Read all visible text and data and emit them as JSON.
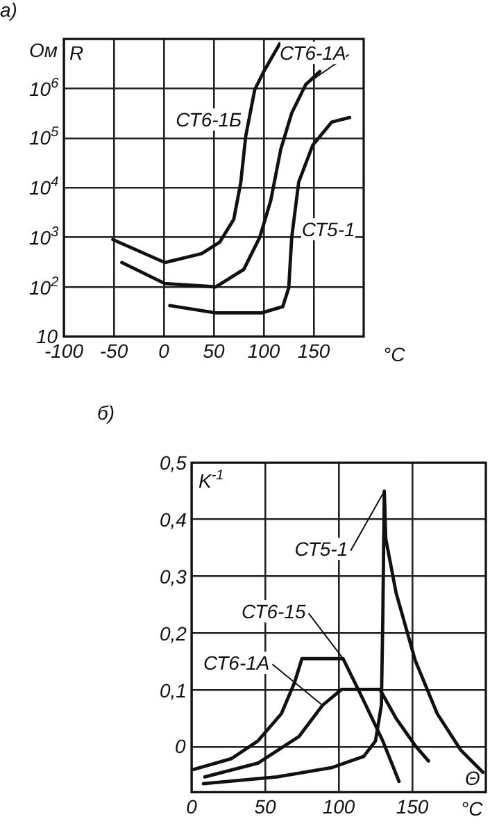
{
  "chart_data": [
    {
      "type": "line",
      "title": "а)",
      "xlabel": "°C",
      "ylabel": "Ом",
      "annotations": [
        "R"
      ],
      "log": "y",
      "grid": true,
      "legend": false,
      "marker": "none",
      "line_style": "solid",
      "xlim": [
        -100,
        200
      ],
      "xticks": [
        -100,
        -50,
        0,
        50,
        100,
        150
      ],
      "ylim": [
        10,
        10000000
      ],
      "yticks": [
        {
          "value": 10,
          "label": "10"
        },
        {
          "value": 100,
          "label": "10$^{2}$"
        },
        {
          "value": 1000,
          "label": "10$^{3}$"
        },
        {
          "value": 10000,
          "label": "10$^{4}$"
        },
        {
          "value": 100000,
          "label": "10$^{5}$"
        },
        {
          "value": 1000000,
          "label": "10$^{6}$"
        },
        {
          "value": 10000000,
          "label": null
        }
      ],
      "series": [
        {
          "name": "СТ6-1Б",
          "color": "#111111",
          "x": [
            -51,
            1,
            38,
            56,
            70,
            77,
            82,
            91,
            100,
            116
          ],
          "values": [
            900,
            310,
            470,
            800,
            2300,
            12600,
            110000,
            950000,
            2200000,
            8000000
          ]
        },
        {
          "name": "СТ6-1А",
          "color": "#111111",
          "x": [
            -42,
            1,
            52,
            80,
            96,
            107,
            117,
            128,
            142,
            156
          ],
          "values": [
            310,
            117,
            100,
            225,
            1000,
            5500,
            59000,
            320000,
            1200000,
            2200000
          ]
        },
        {
          "name": "СТ5-1",
          "color": "#111111",
          "x": [
            6,
            52,
            98,
            119,
            125,
            128,
            135,
            149,
            168,
            186
          ],
          "values": [
            42,
            30,
            30,
            40,
            95,
            1000,
            13000,
            72000,
            210000,
            260000
          ]
        }
      ]
    },
    {
      "type": "line",
      "title": "б)",
      "xlabel": "°C",
      "ylabel": "K$^{-1}$",
      "annotations": [
        "Θ"
      ],
      "grid": true,
      "legend": false,
      "marker": "none",
      "line_style": "solid",
      "xlim": [
        0,
        200
      ],
      "xticks": [
        0,
        50,
        100,
        150
      ],
      "ylim": [
        -0.08,
        0.5
      ],
      "yticks": [
        {
          "value": 0,
          "label": "0"
        },
        {
          "value": 0.1,
          "label": "0,1"
        },
        {
          "value": 0.2,
          "label": "0,2"
        },
        {
          "value": 0.3,
          "label": "0,3"
        },
        {
          "value": 0.4,
          "label": "0,4"
        },
        {
          "value": 0.5,
          "label": "0,5"
        }
      ],
      "series": [
        {
          "name": "СТ5-1",
          "color": "#111111",
          "x": [
            8,
            58,
            95,
            117,
            125,
            129,
            130,
            131,
            132,
            139,
            152,
            167,
            183,
            198
          ],
          "values": [
            -0.065,
            -0.053,
            -0.037,
            -0.017,
            0.01,
            0.073,
            0.23,
            0.45,
            0.366,
            0.271,
            0.152,
            0.058,
            -0.006,
            -0.045
          ]
        },
        {
          "name": "СТ6-15",
          "color": "#111111",
          "x": [
            0,
            27,
            45,
            61,
            70,
            75,
            103,
            117,
            130,
            141
          ],
          "values": [
            -0.041,
            -0.021,
            0.01,
            0.058,
            0.113,
            0.155,
            0.155,
            0.081,
            0.01,
            -0.061
          ]
        },
        {
          "name": "СТ6-1А",
          "color": "#111111",
          "x": [
            9,
            45,
            73,
            89,
            102,
            128,
            139,
            152,
            161
          ],
          "values": [
            -0.053,
            -0.029,
            0.018,
            0.073,
            0.101,
            0.101,
            0.05,
            0.002,
            -0.025
          ]
        }
      ]
    }
  ]
}
